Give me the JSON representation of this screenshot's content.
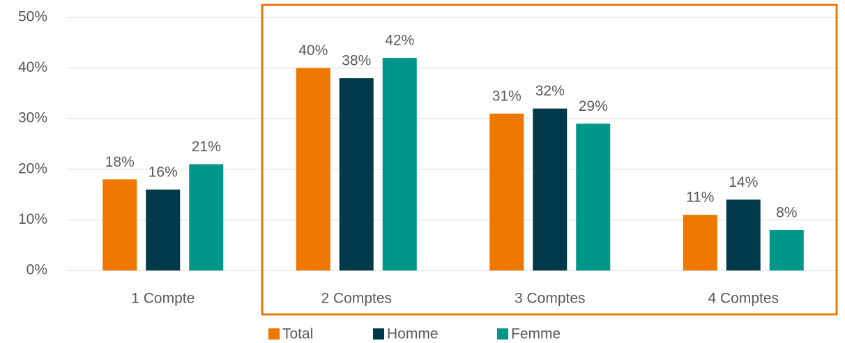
{
  "chart_data": {
    "type": "bar",
    "categories": [
      "1 Compte",
      "2 Comptes",
      "3 Comptes",
      "4 Comptes"
    ],
    "series": [
      {
        "name": "Total",
        "color": "#ee7700",
        "values": [
          18,
          40,
          31,
          11
        ],
        "value_labels": [
          "18%",
          "40%",
          "31%",
          "11%"
        ]
      },
      {
        "name": "Homme",
        "color": "#003a4a",
        "values": [
          16,
          38,
          32,
          14
        ],
        "value_labels": [
          "16%",
          "38%",
          "32%",
          "14%"
        ]
      },
      {
        "name": "Femme",
        "color": "#00968a",
        "values": [
          21,
          42,
          29,
          8
        ],
        "value_labels": [
          "21%",
          "42%",
          "29%",
          "8%"
        ]
      }
    ],
    "ylim": [
      0,
      50
    ],
    "yticks": [
      {
        "value": 0,
        "label": "0%"
      },
      {
        "value": 10,
        "label": "10%"
      },
      {
        "value": 20,
        "label": "20%"
      },
      {
        "value": 30,
        "label": "30%"
      },
      {
        "value": 40,
        "label": "40%"
      },
      {
        "value": 50,
        "label": "50%"
      }
    ],
    "grid": true,
    "legend": "bottom"
  }
}
